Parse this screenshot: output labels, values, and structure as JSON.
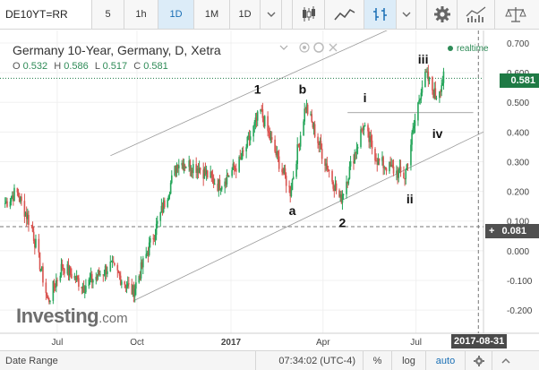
{
  "toolbar": {
    "symbol": "DE10YT=RR",
    "intervals": [
      {
        "label": "5",
        "active": false
      },
      {
        "label": "1h",
        "active": false
      },
      {
        "label": "1D",
        "active": true
      },
      {
        "label": "1M",
        "active": false
      },
      {
        "label": "1D",
        "active": false,
        "dropdown": true
      }
    ],
    "icons": [
      "candlestick-icon",
      "line-chart-icon",
      "draw-tools-icon",
      "dropdown-arrow-icon",
      "gear-icon",
      "indicators-icon",
      "balance-icon"
    ]
  },
  "legend": {
    "title": "Germany 10-Year, Germany, D, Xetra",
    "ohlc": [
      {
        "key": "O",
        "value": "0.532"
      },
      {
        "key": "H",
        "value": "0.586"
      },
      {
        "key": "L",
        "value": "0.517"
      },
      {
        "key": "C",
        "value": "0.581"
      }
    ],
    "realtime": "realtime"
  },
  "chart_data": {
    "type": "candlestick",
    "y_ticks": [
      "0.700",
      "0.600",
      "0.500",
      "0.400",
      "0.300",
      "0.200",
      "0.100",
      "0.000",
      "-0.100",
      "-0.200"
    ],
    "y_tick_values": [
      0.7,
      0.6,
      0.5,
      0.4,
      0.3,
      0.2,
      0.1,
      0.0,
      -0.1,
      -0.2
    ],
    "ylim": [
      -0.23,
      0.73
    ],
    "x_ticks": [
      "Jul",
      "Oct",
      "2017",
      "Apr",
      "Jul"
    ],
    "last_price": "0.581",
    "last_price_value": 0.581,
    "crosshair_price": "0.081",
    "crosshair_value": 0.081,
    "crosshair_date": "2017-08-31",
    "wave_labels": [
      "1",
      "b",
      "i",
      "iii",
      "a",
      "2",
      "ii",
      "iv"
    ],
    "colors": {
      "up": "#26a65b",
      "down": "#d9534f",
      "last": "#1f7a45",
      "channel": "#9a9a9a"
    },
    "anchors": [
      {
        "date": "2016-05-25",
        "close": 0.16
      },
      {
        "date": "2016-06-05",
        "close": 0.2
      },
      {
        "date": "2016-06-20",
        "close": 0.08
      },
      {
        "date": "2016-07-06",
        "close": -0.17
      },
      {
        "date": "2016-07-20",
        "close": -0.05
      },
      {
        "date": "2016-08-10",
        "close": -0.12
      },
      {
        "date": "2016-09-05",
        "close": -0.05
      },
      {
        "date": "2016-09-27",
        "close": -0.14
      },
      {
        "date": "2016-10-20",
        "close": 0.08
      },
      {
        "date": "2016-11-10",
        "close": 0.3
      },
      {
        "date": "2016-12-01",
        "close": 0.28
      },
      {
        "date": "2016-12-20",
        "close": 0.22
      },
      {
        "date": "2017-01-10",
        "close": 0.3
      },
      {
        "date": "2017-01-30",
        "close": 0.47
      },
      {
        "date": "2017-02-10",
        "close": 0.36
      },
      {
        "date": "2017-02-28",
        "close": 0.2
      },
      {
        "date": "2017-03-15",
        "close": 0.49
      },
      {
        "date": "2017-03-31",
        "close": 0.33
      },
      {
        "date": "2017-04-18",
        "close": 0.17
      },
      {
        "date": "2017-05-10",
        "close": 0.42
      },
      {
        "date": "2017-05-25",
        "close": 0.3
      },
      {
        "date": "2017-06-20",
        "close": 0.25
      },
      {
        "date": "2017-07-06",
        "close": 0.55
      },
      {
        "date": "2017-07-11",
        "close": 0.59
      },
      {
        "date": "2017-07-20",
        "close": 0.52
      },
      {
        "date": "2017-07-28",
        "close": 0.58
      }
    ]
  },
  "brand": {
    "word": "Investing",
    "suffix": ".com"
  },
  "status_bar": {
    "date_range": "Date Range",
    "time": "07:34:02 (UTC-4)",
    "percent": "%",
    "log": "log",
    "auto": "auto"
  }
}
